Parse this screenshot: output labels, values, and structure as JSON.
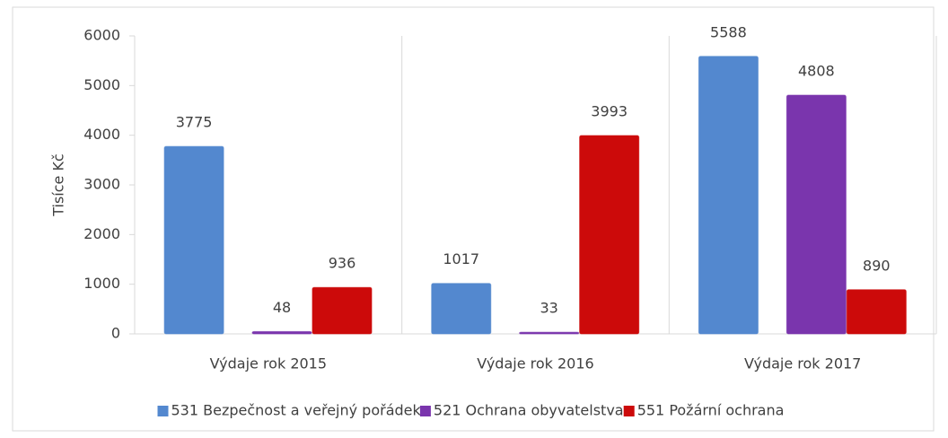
{
  "chart_data": {
    "type": "bar",
    "categories": [
      "Výdaje rok 2015",
      "Výdaje rok 2016",
      "Výdaje rok 2017"
    ],
    "series": [
      {
        "name": "531 Bezpečnost a veřejný pořádek",
        "color": "#5388cf",
        "values": [
          3775,
          1017,
          5588
        ]
      },
      {
        "name": "521 Ochrana obyvatelstva",
        "color": "#7a35ad",
        "values": [
          48,
          33,
          4808
        ]
      },
      {
        "name": "551 Požární ochrana",
        "color": "#cc0a0a",
        "values": [
          936,
          3993,
          890
        ]
      }
    ],
    "y_label": "Tisíce Kč",
    "ylim": [
      0,
      6000
    ],
    "yticks": [
      0,
      1000,
      2000,
      3000,
      4000,
      5000,
      6000
    ],
    "legend": "bottom"
  }
}
